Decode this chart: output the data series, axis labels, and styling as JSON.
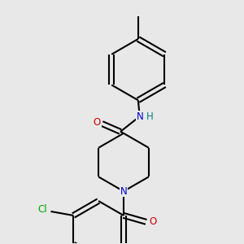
{
  "background_color": "#e8e8e8",
  "bond_color": "#000000",
  "line_width": 1.5,
  "figsize": [
    3.0,
    3.0
  ],
  "dpi": 100,
  "colors": {
    "N": "#0000cc",
    "O": "#cc0000",
    "Cl": "#00aa00",
    "H": "#008080",
    "C": "#000000"
  },
  "font_size": 8.5
}
